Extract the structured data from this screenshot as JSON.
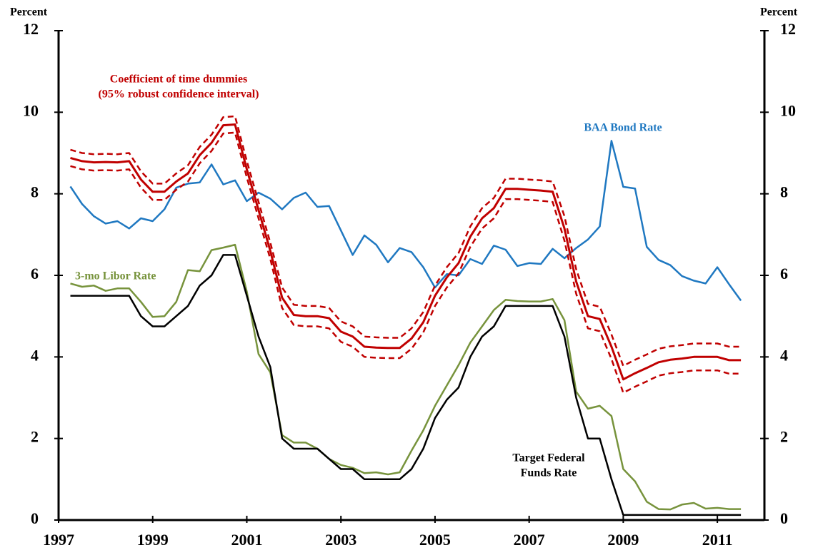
{
  "chart_data": {
    "type": "line",
    "ylabel": "Percent",
    "y2label": "Percent",
    "xlim": [
      1997,
      2012
    ],
    "xticks": [
      1997,
      1999,
      2001,
      2003,
      2005,
      2007,
      2009,
      2011
    ],
    "ylim": [
      0,
      12
    ],
    "yticks": [
      0,
      2,
      4,
      6,
      8,
      10,
      12
    ],
    "y2lim": [
      0,
      12
    ],
    "y2ticks": [
      0,
      2,
      4,
      6,
      8,
      10,
      12
    ],
    "x": [
      1997.25,
      1997.5,
      1997.75,
      1998,
      1998.25,
      1998.5,
      1998.75,
      1999,
      1999.25,
      1999.5,
      1999.75,
      2000,
      2000.25,
      2000.5,
      2000.75,
      2001,
      2001.25,
      2001.5,
      2001.75,
      2002,
      2002.25,
      2002.5,
      2002.75,
      2003,
      2003.25,
      2003.5,
      2003.75,
      2004,
      2004.25,
      2004.5,
      2004.75,
      2005,
      2005.25,
      2005.5,
      2005.75,
      2006,
      2006.25,
      2006.5,
      2006.75,
      2007,
      2007.25,
      2007.5,
      2007.75,
      2008,
      2008.25,
      2008.5,
      2008.75,
      2009,
      2009.25,
      2009.5,
      2009.75,
      2010,
      2010.25,
      2010.5,
      2010.75,
      2011,
      2011.25,
      2011.5
    ],
    "series": [
      {
        "label": [
          "BAA Bond Rate"
        ],
        "color": "#1f78c1",
        "values": [
          8.18,
          7.75,
          7.45,
          7.27,
          7.33,
          7.15,
          7.4,
          7.33,
          7.62,
          8.15,
          8.25,
          8.28,
          8.72,
          8.23,
          8.33,
          7.82,
          8.03,
          7.88,
          7.62,
          7.9,
          8.03,
          7.68,
          7.7,
          7.1,
          6.5,
          6.98,
          6.75,
          6.32,
          6.67,
          6.57,
          6.2,
          5.7,
          6.03,
          6.0,
          6.4,
          6.28,
          6.73,
          6.63,
          6.23,
          6.3,
          6.28,
          6.65,
          6.42,
          6.67,
          6.88,
          7.2,
          9.3,
          8.17,
          8.13,
          6.7,
          6.38,
          6.25,
          5.98,
          5.87,
          5.8,
          6.2,
          5.78,
          5.38
        ]
      },
      {
        "label": [
          "3-mo Libor Rate"
        ],
        "color": "#77933c",
        "values": [
          5.8,
          5.72,
          5.75,
          5.62,
          5.68,
          5.68,
          5.35,
          4.98,
          5.0,
          5.35,
          6.13,
          6.1,
          6.62,
          6.68,
          6.75,
          5.6,
          4.07,
          3.62,
          2.08,
          1.9,
          1.9,
          1.75,
          1.5,
          1.35,
          1.28,
          1.15,
          1.17,
          1.12,
          1.17,
          1.7,
          2.2,
          2.8,
          3.3,
          3.8,
          4.35,
          4.75,
          5.15,
          5.4,
          5.37,
          5.36,
          5.36,
          5.42,
          4.9,
          3.15,
          2.73,
          2.8,
          2.55,
          1.25,
          0.95,
          0.45,
          0.27,
          0.26,
          0.38,
          0.42,
          0.28,
          0.3,
          0.27,
          0.27
        ]
      },
      {
        "label": [
          "Target Federal",
          "Funds Rate"
        ],
        "color": "#000000",
        "values": [
          5.5,
          5.5,
          5.5,
          5.5,
          5.5,
          5.5,
          5.0,
          4.75,
          4.75,
          5.0,
          5.25,
          5.75,
          6.0,
          6.5,
          6.5,
          5.5,
          4.5,
          3.75,
          2.0,
          1.75,
          1.75,
          1.75,
          1.5,
          1.25,
          1.25,
          1.0,
          1.0,
          1.0,
          1.0,
          1.25,
          1.75,
          2.5,
          2.95,
          3.25,
          4.0,
          4.5,
          4.75,
          5.25,
          5.25,
          5.25,
          5.25,
          5.25,
          4.5,
          3.0,
          2.0,
          2.0,
          1.0,
          0.125,
          0.125,
          0.125,
          0.125,
          0.125,
          0.125,
          0.125,
          0.125,
          0.125,
          0.125,
          0.125
        ]
      },
      {
        "label": [
          "Coefficient of time dummies",
          "(95% robust confidence interval)"
        ],
        "color": "#c00000",
        "values": [
          8.88,
          8.8,
          8.77,
          8.78,
          8.77,
          8.8,
          8.35,
          8.05,
          8.05,
          8.3,
          8.5,
          8.95,
          9.25,
          9.68,
          9.7,
          8.6,
          7.6,
          6.6,
          5.45,
          5.03,
          5.0,
          5.0,
          4.95,
          4.62,
          4.5,
          4.25,
          4.23,
          4.22,
          4.22,
          4.45,
          4.85,
          5.5,
          5.95,
          6.3,
          6.95,
          7.4,
          7.65,
          8.12,
          8.12,
          8.1,
          8.08,
          8.05,
          7.15,
          5.85,
          5.0,
          4.93,
          4.25,
          3.45,
          3.6,
          3.73,
          3.87,
          3.93,
          3.96,
          4.0,
          4.0,
          4.0,
          3.92,
          3.92
        ],
        "ci_upper": [
          9.08,
          9.0,
          8.97,
          8.98,
          8.97,
          9.0,
          8.55,
          8.25,
          8.25,
          8.5,
          8.7,
          9.15,
          9.45,
          9.88,
          9.9,
          8.8,
          7.8,
          6.8,
          5.7,
          5.28,
          5.25,
          5.25,
          5.2,
          4.87,
          4.75,
          4.5,
          4.48,
          4.47,
          4.47,
          4.7,
          5.1,
          5.75,
          6.2,
          6.55,
          7.2,
          7.65,
          7.9,
          8.37,
          8.37,
          8.35,
          8.33,
          8.3,
          7.45,
          6.15,
          5.3,
          5.23,
          4.55,
          3.78,
          3.93,
          4.06,
          4.2,
          4.26,
          4.29,
          4.33,
          4.33,
          4.33,
          4.25,
          4.25
        ],
        "ci_lower": [
          8.68,
          8.6,
          8.57,
          8.58,
          8.57,
          8.6,
          8.15,
          7.85,
          7.85,
          8.1,
          8.3,
          8.75,
          9.05,
          9.48,
          9.5,
          8.4,
          7.4,
          6.4,
          5.2,
          4.78,
          4.75,
          4.75,
          4.7,
          4.37,
          4.25,
          4.0,
          3.98,
          3.97,
          3.97,
          4.2,
          4.6,
          5.25,
          5.7,
          6.05,
          6.7,
          7.15,
          7.4,
          7.87,
          7.87,
          7.85,
          7.83,
          7.8,
          6.85,
          5.55,
          4.7,
          4.63,
          3.95,
          3.12,
          3.27,
          3.4,
          3.54,
          3.6,
          3.63,
          3.67,
          3.67,
          3.67,
          3.59,
          3.59
        ]
      }
    ]
  }
}
